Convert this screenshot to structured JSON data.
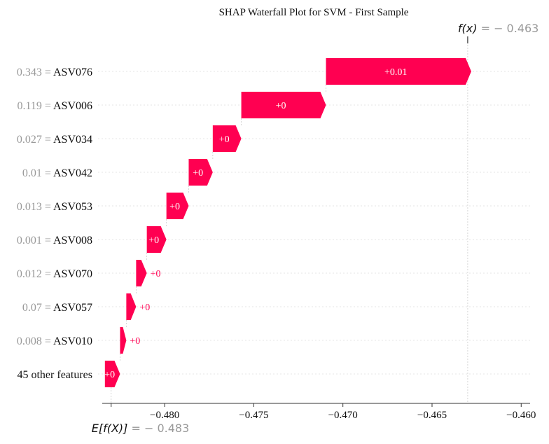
{
  "colors": {
    "positive": "#ff0051",
    "grid": "#e5e5e5",
    "axis": "#333333",
    "muted": "#999999",
    "text": "#111111"
  },
  "chart_data": {
    "type": "waterfall",
    "title": "SHAP Waterfall Plot for SVM - First Sample",
    "base_value": -0.483,
    "output_value": -0.463,
    "base_label_expr": "E[f(X)]",
    "base_label_value": " = − 0.483",
    "output_label_expr": "f(x)",
    "output_label_value": " = − 0.463",
    "xlim": [
      -0.4835,
      -0.4595
    ],
    "xticks": [
      -0.48,
      -0.475,
      -0.47,
      -0.465,
      -0.46
    ],
    "xtick_labels": [
      "−0.480",
      "−0.475",
      "−0.470",
      "−0.465",
      "−0.460"
    ],
    "rows": [
      {
        "feature": "ASV076",
        "value": "0.343",
        "start": -0.47095,
        "end": -0.4628,
        "label": "+0.01",
        "label_inside": true
      },
      {
        "feature": "ASV006",
        "value": "0.119",
        "start": -0.4757,
        "end": -0.47095,
        "label": "+0",
        "label_inside": true
      },
      {
        "feature": "ASV034",
        "value": "0.027",
        "start": -0.4773,
        "end": -0.4757,
        "label": "+0",
        "label_inside": true
      },
      {
        "feature": "ASV042",
        "value": "0.01",
        "start": -0.47865,
        "end": -0.4773,
        "label": "+0",
        "label_inside": true
      },
      {
        "feature": "ASV053",
        "value": "0.013",
        "start": -0.4799,
        "end": -0.47865,
        "label": "+0",
        "label_inside": true
      },
      {
        "feature": "ASV008",
        "value": "0.001",
        "start": -0.481,
        "end": -0.4799,
        "label": "+0",
        "label_inside": true
      },
      {
        "feature": "ASV070",
        "value": "0.012",
        "start": -0.4816,
        "end": -0.481,
        "label": "+0",
        "label_inside": false
      },
      {
        "feature": "ASV057",
        "value": "0.07",
        "start": -0.48215,
        "end": -0.4816,
        "label": "+0",
        "label_inside": false
      },
      {
        "feature": "ASV010",
        "value": "0.008",
        "start": -0.4825,
        "end": -0.48215,
        "label": "+0",
        "label_inside": false
      },
      {
        "feature": "45 other features",
        "value": "",
        "start": -0.48335,
        "end": -0.4825,
        "label": "+0",
        "label_inside": true
      }
    ]
  }
}
